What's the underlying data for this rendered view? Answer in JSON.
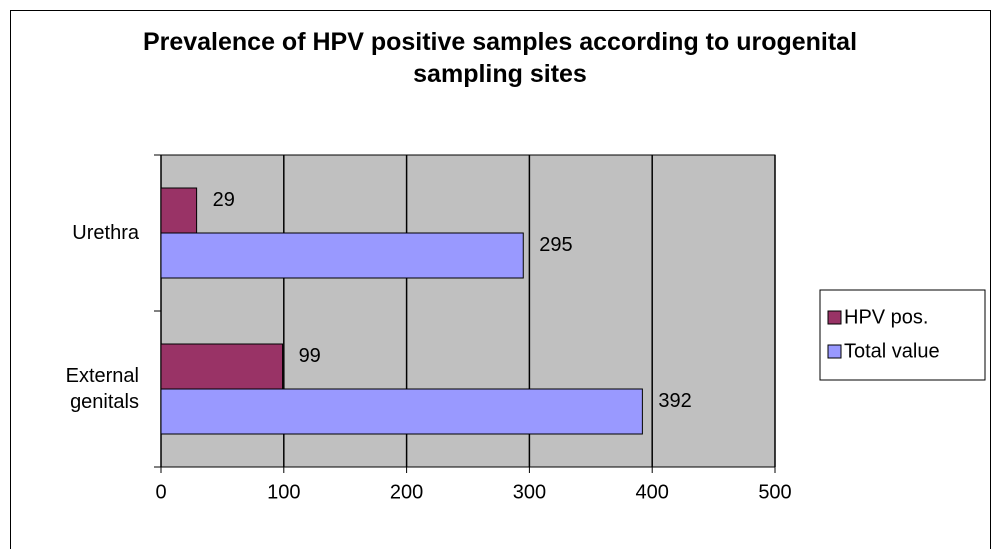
{
  "chart_data": {
    "type": "hbar",
    "title": "Prevalence of HPV positive samples according to urogenital sampling sites",
    "categories": [
      "Urethra",
      "External genitals"
    ],
    "series": [
      {
        "name": "HPV pos.",
        "color": "#993366",
        "values": [
          29,
          99
        ]
      },
      {
        "name": "Total value",
        "color": "#9999ff",
        "values": [
          295,
          392
        ]
      }
    ],
    "xlim": [
      0,
      500
    ],
    "xticks": [
      0,
      100,
      200,
      300,
      400,
      500
    ],
    "grid": true,
    "legend": "right"
  }
}
